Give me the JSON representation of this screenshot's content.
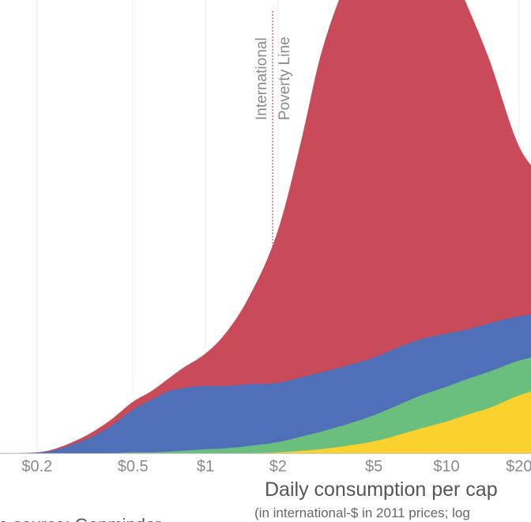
{
  "chart_data": {
    "type": "area",
    "stacked": true,
    "x_scale": "log",
    "x_ticks": [
      0.2,
      0.5,
      1,
      2,
      5,
      10,
      20
    ],
    "x_tick_labels": [
      "$0.2",
      "$0.5",
      "$1",
      "$2",
      "$5",
      "$10",
      "$20"
    ],
    "xlim": [
      0.1,
      25
    ],
    "xlabel": "Daily consumption per cap",
    "xlabel_sub": "(in international-$ in 2011 prices; log",
    "source": "ta source: Gapminder",
    "grid": true,
    "y_axis_visible": false,
    "poverty_line": {
      "x": 1.9,
      "label_line1": "International",
      "label_line2": "Poverty Line"
    },
    "x": [
      0.1,
      0.15,
      0.2,
      0.3,
      0.4,
      0.5,
      0.6,
      0.7,
      0.8,
      1,
      1.2,
      1.5,
      2,
      2.5,
      3,
      4,
      5,
      6,
      7,
      8,
      10,
      12,
      15,
      20,
      25
    ],
    "series": [
      {
        "color": "#fbd12d",
        "values": [
          0,
          0,
          0,
          0,
          0,
          0,
          0,
          0,
          0,
          0,
          0,
          0,
          1,
          3,
          5,
          10,
          15,
          21,
          27,
          32,
          40,
          48,
          57,
          73,
          82
        ]
      },
      {
        "color": "#6bbf7e",
        "values": [
          0,
          0,
          0,
          0,
          0,
          1,
          1,
          2,
          3,
          5,
          6,
          9,
          13,
          18,
          22,
          28,
          33,
          37,
          40,
          42,
          44,
          45,
          46,
          44,
          42
        ]
      },
      {
        "color": "#4f70b8",
        "values": [
          0,
          0,
          0.5,
          14,
          33,
          54,
          67,
          76,
          79,
          80,
          79,
          78,
          75,
          75,
          75,
          74,
          73,
          73,
          72,
          71,
          67,
          63,
          61,
          56,
          53
        ]
      },
      {
        "color": "#c94a58",
        "values": [
          0,
          0.1,
          0.5,
          4,
          8,
          10,
          11,
          16,
          25,
          41,
          65,
          108,
          193,
          300,
          400,
          496,
          537,
          555,
          545,
          525,
          475,
          415,
          335,
          215,
          170
        ]
      }
    ]
  }
}
